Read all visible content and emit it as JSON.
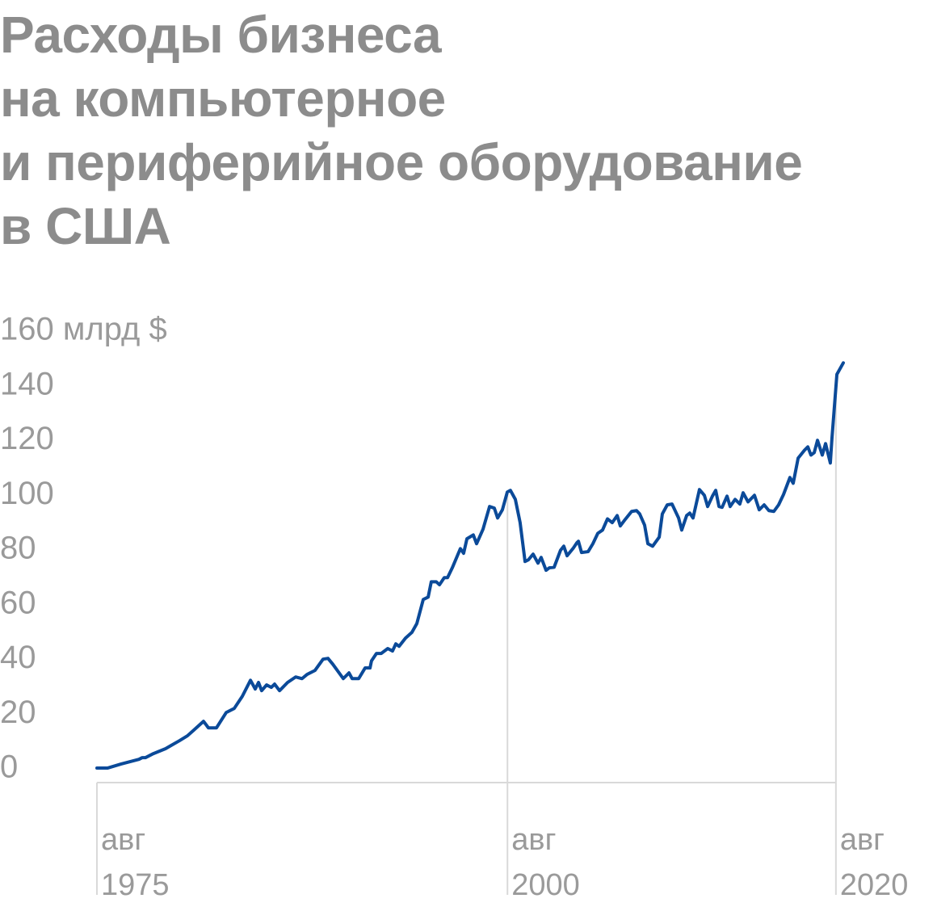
{
  "chart_data": {
    "type": "line",
    "title": "Расходы бизнеса\nна компьютерное\nи периферийное оборудование\nв США",
    "x": [
      1975.58,
      1976.22,
      1977.06,
      1978.14,
      1978.33,
      1978.53,
      1979.02,
      1979.76,
      1980.11,
      1980.6,
      1981.09,
      1981.48,
      1982.07,
      1982.37,
      1982.86,
      1983.45,
      1983.94,
      1984.43,
      1984.93,
      1985.22,
      1985.42,
      1985.61,
      1985.91,
      1986.2,
      1986.4,
      1986.7,
      1987.19,
      1987.68,
      1988.07,
      1988.37,
      1988.86,
      1989.35,
      1989.65,
      1989.94,
      1990.58,
      1990.93,
      1991.12,
      1991.52,
      1991.91,
      1992.21,
      1992.3,
      1992.6,
      1992.89,
      1993.29,
      1993.58,
      1993.78,
      1993.98,
      1994.37,
      1994.76,
      1995.06,
      1995.45,
      1995.75,
      1995.94,
      1996.24,
      1996.44,
      1996.73,
      1996.93,
      1997.22,
      1997.71,
      1997.91,
      1998.11,
      1998.5,
      1998.7,
      1999.09,
      1999.49,
      1999.78,
      1999.98,
      2000.27,
      2000.57,
      2000.76,
      2001.06,
      2001.35,
      2001.65,
      2001.85,
      2002.14,
      2002.44,
      2002.63,
      2002.93,
      2003.13,
      2003.42,
      2003.81,
      2004.01,
      2004.21,
      2004.6,
      2004.8,
      2004.9,
      2005.09,
      2005.49,
      2005.78,
      2006.08,
      2006.37,
      2006.67,
      2006.96,
      2007.26,
      2007.45,
      2007.75,
      2008.14,
      2008.44,
      2008.63,
      2008.93,
      2009.13,
      2009.42,
      2009.82,
      2010.01,
      2010.31,
      2010.6,
      2011.0,
      2011.19,
      2011.49,
      2011.68,
      2011.88,
      2012.27,
      2012.57,
      2012.77,
      2013.06,
      2013.26,
      2013.46,
      2013.65,
      2013.95,
      2014.14,
      2014.44,
      2014.73,
      2014.93,
      2015.23,
      2015.62,
      2015.91,
      2016.21,
      2016.5,
      2016.8,
      2017.09,
      2017.39,
      2017.78,
      2017.98,
      2018.28,
      2018.67,
      2018.87,
      2019.06,
      2019.26,
      2019.46,
      2019.75,
      2019.95,
      2020.24,
      2020.34,
      2020.64,
      2021.03
    ],
    "series": [
      {
        "color": "#0b4a99",
        "values": [
          0.3,
          0.3,
          1.8,
          3.5,
          4.1,
          4.1,
          5.6,
          7.4,
          8.6,
          10.3,
          12.1,
          14.2,
          17.4,
          15.0,
          15.0,
          20.6,
          22.1,
          26.5,
          32.4,
          29.2,
          31.6,
          28.6,
          30.7,
          29.8,
          31.0,
          28.6,
          31.6,
          33.6,
          33.0,
          34.5,
          36.0,
          40.1,
          40.4,
          38.3,
          33.0,
          35.1,
          33.0,
          33.0,
          36.9,
          36.9,
          39.5,
          42.2,
          42.2,
          44.0,
          43.1,
          45.7,
          44.8,
          47.8,
          49.9,
          53.1,
          61.9,
          62.8,
          68.4,
          68.4,
          67.3,
          69.9,
          69.9,
          73.5,
          80.5,
          78.8,
          84.1,
          85.5,
          82.3,
          87.6,
          95.9,
          95.3,
          91.7,
          94.7,
          101.2,
          101.8,
          98.5,
          90.0,
          75.8,
          76.4,
          78.5,
          75.2,
          77.3,
          72.6,
          73.5,
          73.7,
          79.9,
          81.4,
          77.9,
          80.8,
          82.6,
          83.2,
          79.1,
          79.4,
          82.3,
          86.1,
          87.3,
          91.4,
          90.0,
          92.6,
          88.8,
          91.2,
          94.1,
          94.4,
          93.2,
          89.1,
          82.3,
          81.4,
          84.7,
          93.2,
          96.5,
          96.8,
          91.7,
          87.3,
          92.6,
          93.5,
          91.7,
          102.1,
          100.0,
          95.9,
          99.7,
          101.8,
          95.9,
          95.6,
          99.7,
          95.9,
          98.5,
          96.8,
          100.9,
          97.6,
          100.0,
          94.7,
          96.5,
          94.4,
          94.1,
          96.5,
          100.3,
          106.5,
          104.4,
          113.6,
          116.5,
          117.7,
          114.7,
          115.6,
          120.1,
          114.7,
          118.9,
          111.8,
          120.9,
          144.2,
          148.4
        ]
      }
    ],
    "xlim": [
      1975.58,
      2021.03
    ],
    "xticks": [
      {
        "value": 1975.58,
        "label": "авг 1975"
      },
      {
        "value": 2000.58,
        "label": "авг 2000"
      },
      {
        "value": 2020.58,
        "label": "авг 2020"
      }
    ],
    "ylim": [
      -5,
      160
    ],
    "yticks": [
      0,
      20,
      40,
      60,
      80,
      100,
      120,
      140,
      {
        "value": 160,
        "label": "160 млрд $"
      }
    ]
  }
}
